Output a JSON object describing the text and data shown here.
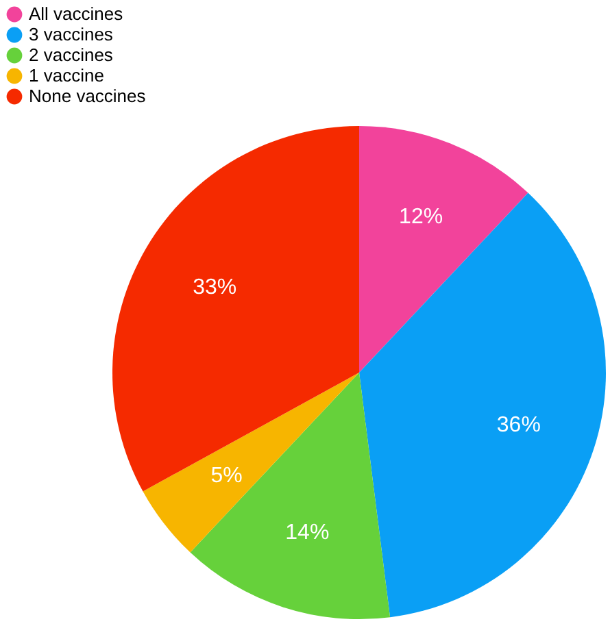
{
  "chart_data": {
    "type": "pie",
    "categories": [
      "All vaccines",
      "3 vaccines",
      "2 vaccines",
      "1 vaccine",
      "None vaccines"
    ],
    "values": [
      12,
      36,
      14,
      5,
      33
    ],
    "colors": [
      "#f2439b",
      "#0a9ff5",
      "#66d13b",
      "#f7b500",
      "#f52a00"
    ],
    "value_labels": [
      "12%",
      "36%",
      "14%",
      "5%",
      "33%"
    ],
    "legend": "top left"
  }
}
